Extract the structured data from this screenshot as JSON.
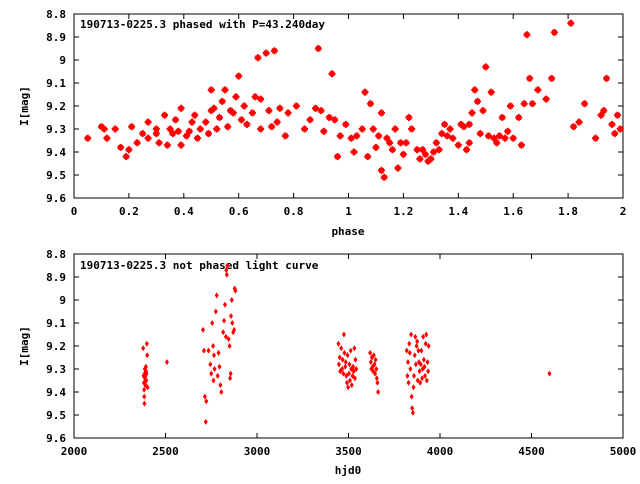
{
  "chart_data": [
    {
      "type": "scatter",
      "title": "190713-0225.3 phased with P=43.240day",
      "xlabel": "phase",
      "ylabel": "I[mag]",
      "xlim": [
        0,
        2
      ],
      "ylim": [
        9.6,
        8.8
      ],
      "y_inverted": true,
      "xticks": [
        "0",
        "0.2",
        "0.4",
        "0.6",
        "0.8",
        "1",
        "1.2",
        "1.4",
        "1.6",
        "1.8",
        "2"
      ],
      "xtick_values": [
        0,
        0.2,
        0.4,
        0.6,
        0.8,
        1.0,
        1.2,
        1.4,
        1.6,
        1.8,
        2.0
      ],
      "yticks": [
        "8.8",
        "8.9",
        "9",
        "9.1",
        "9.2",
        "9.3",
        "9.4",
        "9.5",
        "9.6"
      ],
      "ytick_values": [
        8.8,
        8.9,
        9.0,
        9.1,
        9.2,
        9.3,
        9.4,
        9.5,
        9.6
      ],
      "grid": false,
      "marker_color": "#ff0000",
      "points": [
        [
          0.05,
          9.34
        ],
        [
          0.1,
          9.29
        ],
        [
          0.11,
          9.3
        ],
        [
          0.12,
          9.34
        ],
        [
          0.15,
          9.3
        ],
        [
          0.17,
          9.38
        ],
        [
          0.19,
          9.42
        ],
        [
          0.2,
          9.39
        ],
        [
          0.21,
          9.29
        ],
        [
          0.23,
          9.36
        ],
        [
          0.25,
          9.32
        ],
        [
          0.27,
          9.27
        ],
        [
          0.27,
          9.34
        ],
        [
          0.3,
          9.3
        ],
        [
          0.3,
          9.32
        ],
        [
          0.31,
          9.36
        ],
        [
          0.33,
          9.24
        ],
        [
          0.34,
          9.37
        ],
        [
          0.35,
          9.3
        ],
        [
          0.36,
          9.32
        ],
        [
          0.37,
          9.26
        ],
        [
          0.38,
          9.31
        ],
        [
          0.39,
          9.37
        ],
        [
          0.39,
          9.21
        ],
        [
          0.41,
          9.33
        ],
        [
          0.42,
          9.31
        ],
        [
          0.43,
          9.27
        ],
        [
          0.44,
          9.24
        ],
        [
          0.45,
          9.34
        ],
        [
          0.46,
          9.3
        ],
        [
          0.48,
          9.27
        ],
        [
          0.49,
          9.32
        ],
        [
          0.5,
          9.22
        ],
        [
          0.5,
          9.13
        ],
        [
          0.51,
          9.21
        ],
        [
          0.52,
          9.3
        ],
        [
          0.53,
          9.25
        ],
        [
          0.54,
          9.18
        ],
        [
          0.55,
          9.13
        ],
        [
          0.56,
          9.29
        ],
        [
          0.57,
          9.22
        ],
        [
          0.58,
          9.23
        ],
        [
          0.59,
          9.16
        ],
        [
          0.6,
          9.07
        ],
        [
          0.61,
          9.26
        ],
        [
          0.62,
          9.2
        ],
        [
          0.63,
          9.28
        ],
        [
          0.65,
          9.23
        ],
        [
          0.66,
          9.16
        ],
        [
          0.67,
          8.99
        ],
        [
          0.68,
          9.3
        ],
        [
          0.68,
          9.17
        ],
        [
          0.7,
          8.97
        ],
        [
          0.71,
          9.22
        ],
        [
          0.72,
          9.29
        ],
        [
          0.73,
          8.96
        ],
        [
          0.74,
          9.27
        ],
        [
          0.75,
          9.21
        ],
        [
          0.77,
          9.33
        ],
        [
          0.78,
          9.23
        ],
        [
          0.81,
          9.2
        ],
        [
          0.84,
          9.3
        ],
        [
          0.86,
          9.26
        ],
        [
          0.88,
          9.21
        ],
        [
          0.89,
          8.95
        ],
        [
          0.9,
          9.22
        ],
        [
          0.91,
          9.31
        ],
        [
          0.93,
          9.25
        ],
        [
          0.94,
          9.06
        ],
        [
          0.95,
          9.26
        ],
        [
          0.96,
          9.42
        ],
        [
          0.97,
          9.33
        ],
        [
          0.99,
          9.28
        ],
        [
          1.01,
          9.34
        ],
        [
          1.02,
          9.4
        ],
        [
          1.03,
          9.33
        ],
        [
          1.05,
          9.3
        ],
        [
          1.06,
          9.14
        ],
        [
          1.07,
          9.42
        ],
        [
          1.08,
          9.19
        ],
        [
          1.09,
          9.3
        ],
        [
          1.1,
          9.38
        ],
        [
          1.11,
          9.33
        ],
        [
          1.12,
          9.48
        ],
        [
          1.12,
          9.23
        ],
        [
          1.13,
          9.51
        ],
        [
          1.14,
          9.34
        ],
        [
          1.15,
          9.36
        ],
        [
          1.16,
          9.39
        ],
        [
          1.17,
          9.3
        ],
        [
          1.18,
          9.47
        ],
        [
          1.19,
          9.36
        ],
        [
          1.2,
          9.41
        ],
        [
          1.21,
          9.36
        ],
        [
          1.22,
          9.25
        ],
        [
          1.23,
          9.3
        ],
        [
          1.25,
          9.39
        ],
        [
          1.26,
          9.43
        ],
        [
          1.27,
          9.39
        ],
        [
          1.28,
          9.41
        ],
        [
          1.29,
          9.44
        ],
        [
          1.3,
          9.43
        ],
        [
          1.31,
          9.4
        ],
        [
          1.32,
          9.36
        ],
        [
          1.33,
          9.39
        ],
        [
          1.34,
          9.32
        ],
        [
          1.35,
          9.28
        ],
        [
          1.36,
          9.33
        ],
        [
          1.37,
          9.3
        ],
        [
          1.38,
          9.34
        ],
        [
          1.4,
          9.37
        ],
        [
          1.41,
          9.28
        ],
        [
          1.42,
          9.29
        ],
        [
          1.43,
          9.39
        ],
        [
          1.44,
          9.36
        ],
        [
          1.44,
          9.28
        ],
        [
          1.45,
          9.23
        ],
        [
          1.46,
          9.13
        ],
        [
          1.47,
          9.18
        ],
        [
          1.48,
          9.32
        ],
        [
          1.49,
          9.22
        ],
        [
          1.5,
          9.03
        ],
        [
          1.51,
          9.33
        ],
        [
          1.52,
          9.14
        ],
        [
          1.53,
          9.34
        ],
        [
          1.54,
          9.36
        ],
        [
          1.55,
          9.33
        ],
        [
          1.56,
          9.25
        ],
        [
          1.57,
          9.34
        ],
        [
          1.58,
          9.31
        ],
        [
          1.59,
          9.2
        ],
        [
          1.6,
          9.34
        ],
        [
          1.62,
          9.25
        ],
        [
          1.63,
          9.37
        ],
        [
          1.64,
          9.19
        ],
        [
          1.65,
          8.89
        ],
        [
          1.66,
          9.08
        ],
        [
          1.67,
          9.19
        ],
        [
          1.69,
          9.13
        ],
        [
          1.72,
          9.17
        ],
        [
          1.74,
          9.08
        ],
        [
          1.75,
          8.88
        ],
        [
          1.81,
          8.84
        ],
        [
          1.82,
          9.29
        ],
        [
          1.84,
          9.27
        ],
        [
          1.86,
          9.19
        ],
        [
          1.9,
          9.34
        ],
        [
          1.92,
          9.24
        ],
        [
          1.93,
          9.22
        ],
        [
          1.94,
          9.08
        ],
        [
          1.96,
          9.28
        ],
        [
          1.97,
          9.32
        ],
        [
          1.98,
          9.24
        ],
        [
          1.99,
          9.3
        ]
      ]
    },
    {
      "type": "scatter",
      "title": "190713-0225.3 not phased light curve",
      "xlabel": "hjd0",
      "ylabel": "I[mag]",
      "xlim": [
        2000,
        5000
      ],
      "ylim": [
        9.6,
        8.8
      ],
      "y_inverted": true,
      "xticks": [
        "2000",
        "2500",
        "3000",
        "3500",
        "4000",
        "4500",
        "5000"
      ],
      "xtick_values": [
        2000,
        2500,
        3000,
        3500,
        4000,
        4500,
        5000
      ],
      "yticks": [
        "8.8",
        "8.9",
        "9",
        "9.1",
        "9.2",
        "9.3",
        "9.4",
        "9.5",
        "9.6"
      ],
      "ytick_values": [
        8.8,
        8.9,
        9.0,
        9.1,
        9.2,
        9.3,
        9.4,
        9.5,
        9.6
      ],
      "grid": false,
      "marker_color": "#ff0000",
      "points": [
        [
          2378,
          9.21
        ],
        [
          2380,
          9.33
        ],
        [
          2382,
          9.36
        ],
        [
          2383,
          9.39
        ],
        [
          2384,
          9.42
        ],
        [
          2385,
          9.45
        ],
        [
          2386,
          9.32
        ],
        [
          2387,
          9.3
        ],
        [
          2388,
          9.34
        ],
        [
          2390,
          9.37
        ],
        [
          2391,
          9.33
        ],
        [
          2393,
          9.29
        ],
        [
          2394,
          9.31
        ],
        [
          2395,
          9.35
        ],
        [
          2396,
          9.32
        ],
        [
          2398,
          9.19
        ],
        [
          2400,
          9.24
        ],
        [
          2402,
          9.38
        ],
        [
          2508,
          9.27
        ],
        [
          2705,
          9.13
        ],
        [
          2710,
          9.22
        ],
        [
          2715,
          9.42
        ],
        [
          2720,
          9.53
        ],
        [
          2723,
          9.44
        ],
        [
          2735,
          9.22
        ],
        [
          2745,
          9.28
        ],
        [
          2750,
          9.32
        ],
        [
          2755,
          9.1
        ],
        [
          2760,
          9.2
        ],
        [
          2762,
          9.35
        ],
        [
          2765,
          9.24
        ],
        [
          2768,
          9.3
        ],
        [
          2775,
          9.05
        ],
        [
          2780,
          8.98
        ],
        [
          2785,
          9.33
        ],
        [
          2790,
          9.23
        ],
        [
          2795,
          9.29
        ],
        [
          2800,
          9.37
        ],
        [
          2805,
          9.4
        ],
        [
          2815,
          9.14
        ],
        [
          2820,
          9.09
        ],
        [
          2825,
          9.02
        ],
        [
          2830,
          9.16
        ],
        [
          2832,
          8.87
        ],
        [
          2835,
          8.89
        ],
        [
          2838,
          8.85
        ],
        [
          2845,
          9.17
        ],
        [
          2850,
          9.2
        ],
        [
          2853,
          9.34
        ],
        [
          2856,
          9.32
        ],
        [
          2858,
          9.07
        ],
        [
          2862,
          9.0
        ],
        [
          2865,
          9.1
        ],
        [
          2870,
          9.14
        ],
        [
          2875,
          9.13
        ],
        [
          2878,
          8.95
        ],
        [
          2882,
          8.96
        ],
        [
          3445,
          9.19
        ],
        [
          3448,
          9.28
        ],
        [
          3452,
          9.25
        ],
        [
          3455,
          9.31
        ],
        [
          3460,
          9.21
        ],
        [
          3465,
          9.3
        ],
        [
          3468,
          9.26
        ],
        [
          3472,
          9.32
        ],
        [
          3475,
          9.15
        ],
        [
          3478,
          9.23
        ],
        [
          3482,
          9.29
        ],
        [
          3485,
          9.27
        ],
        [
          3488,
          9.33
        ],
        [
          3492,
          9.36
        ],
        [
          3495,
          9.24
        ],
        [
          3498,
          9.38
        ],
        [
          3502,
          9.32
        ],
        [
          3505,
          9.28
        ],
        [
          3508,
          9.35
        ],
        [
          3512,
          9.22
        ],
        [
          3515,
          9.3
        ],
        [
          3518,
          9.37
        ],
        [
          3522,
          9.33
        ],
        [
          3525,
          9.29
        ],
        [
          3528,
          9.31
        ],
        [
          3532,
          9.21
        ],
        [
          3535,
          9.34
        ],
        [
          3538,
          9.26
        ],
        [
          3542,
          9.3
        ],
        [
          3618,
          9.23
        ],
        [
          3622,
          9.27
        ],
        [
          3625,
          9.3
        ],
        [
          3628,
          9.25
        ],
        [
          3632,
          9.29
        ],
        [
          3635,
          9.31
        ],
        [
          3638,
          9.24
        ],
        [
          3642,
          9.28
        ],
        [
          3645,
          9.32
        ],
        [
          3648,
          9.26
        ],
        [
          3652,
          9.3
        ],
        [
          3655,
          9.34
        ],
        [
          3658,
          9.36
        ],
        [
          3662,
          9.4
        ],
        [
          3818,
          9.22
        ],
        [
          3822,
          9.33
        ],
        [
          3825,
          9.27
        ],
        [
          3828,
          9.36
        ],
        [
          3832,
          9.19
        ],
        [
          3835,
          9.23
        ],
        [
          3838,
          9.3
        ],
        [
          3842,
          9.15
        ],
        [
          3845,
          9.42
        ],
        [
          3848,
          9.47
        ],
        [
          3852,
          9.49
        ],
        [
          3855,
          9.38
        ],
        [
          3858,
          9.33
        ],
        [
          3862,
          9.24
        ],
        [
          3865,
          9.16
        ],
        [
          3868,
          9.28
        ],
        [
          3872,
          9.2
        ],
        [
          3875,
          9.18
        ],
        [
          3878,
          9.35
        ],
        [
          3882,
          9.22
        ],
        [
          3885,
          9.27
        ],
        [
          3888,
          9.31
        ],
        [
          3892,
          9.36
        ],
        [
          3895,
          9.28
        ],
        [
          3898,
          9.22
        ],
        [
          3902,
          9.34
        ],
        [
          3905,
          9.3
        ],
        [
          3908,
          9.16
        ],
        [
          3912,
          9.26
        ],
        [
          3915,
          9.29
        ],
        [
          3918,
          9.33
        ],
        [
          3922,
          9.19
        ],
        [
          3925,
          9.15
        ],
        [
          3928,
          9.35
        ],
        [
          3932,
          9.27
        ],
        [
          3935,
          9.31
        ],
        [
          3938,
          9.2
        ],
        [
          4598,
          9.32
        ]
      ]
    }
  ]
}
